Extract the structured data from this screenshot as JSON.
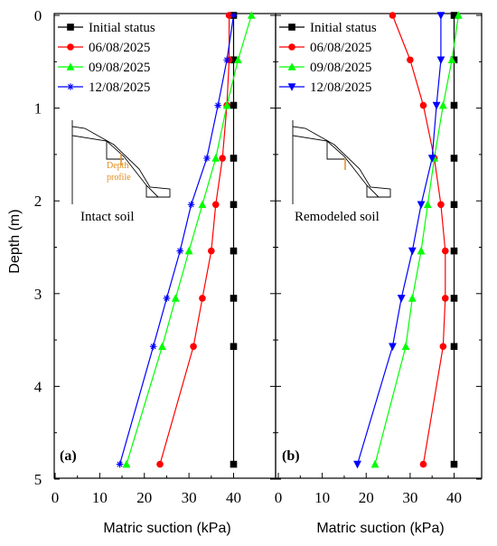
{
  "colors": {
    "Initial status": "#000000",
    "06/08/2025": "#ff0000",
    "09/08/2025": "#00ff00",
    "12/08/2025": "#0000ff",
    "profile": "#e38a1a"
  },
  "y_axis_title": "Depth (m)",
  "chart_data": [
    {
      "type": "line",
      "panel_label": "(a)",
      "inset_label": "Intact soil",
      "inset_note": [
        "Depth",
        "profile"
      ],
      "xlabel": "Matric suction (kPa)",
      "ylabel": "Depth (m)",
      "xlim": [
        0,
        50
      ],
      "ylim": [
        5,
        0
      ],
      "y_inverted": true,
      "x_ticks": [
        "0",
        "10",
        "20",
        "30",
        "40"
      ],
      "y_ticks": [
        "0",
        "1",
        "2",
        "3",
        "4",
        "5"
      ],
      "legend_position": "top-left",
      "series": [
        {
          "name": "Initial status",
          "marker": "square",
          "points": [
            [
              40,
              0
            ],
            [
              40,
              0.48
            ],
            [
              40,
              0.97
            ],
            [
              40,
              1.54
            ],
            [
              40,
              2.04
            ],
            [
              40,
              2.54
            ],
            [
              40,
              3.05
            ],
            [
              40,
              3.57
            ],
            [
              40,
              4.84
            ]
          ]
        },
        {
          "name": "06/08/2025",
          "marker": "circle",
          "points": [
            [
              39,
              0
            ],
            [
              39,
              0.48
            ],
            [
              38.5,
              0.97
            ],
            [
              37.5,
              1.54
            ],
            [
              36,
              2.04
            ],
            [
              35,
              2.54
            ],
            [
              33,
              3.05
            ],
            [
              31,
              3.57
            ],
            [
              23.5,
              4.84
            ]
          ]
        },
        {
          "name": "09/08/2025",
          "marker": "triangle-up",
          "points": [
            [
              44,
              0
            ],
            [
              41,
              0.48
            ],
            [
              38.5,
              0.97
            ],
            [
              36,
              1.54
            ],
            [
              33,
              2.04
            ],
            [
              30,
              2.54
            ],
            [
              27,
              3.05
            ],
            [
              24,
              3.57
            ],
            [
              16,
              4.84
            ]
          ]
        },
        {
          "name": "12/08/2025",
          "marker": "asterisk",
          "points": [
            [
              40,
              0
            ],
            [
              38.5,
              0.48
            ],
            [
              36.5,
              0.97
            ],
            [
              34,
              1.54
            ],
            [
              30.5,
              2.04
            ],
            [
              28,
              2.54
            ],
            [
              25,
              3.05
            ],
            [
              22,
              3.57
            ],
            [
              14.5,
              4.84
            ]
          ]
        }
      ]
    },
    {
      "type": "line",
      "panel_label": "(b)",
      "inset_label": "Remodeled soil",
      "xlabel": "Matric suction (kPa)",
      "ylabel": "Depth (m)",
      "xlim": [
        0,
        45
      ],
      "ylim": [
        5,
        0
      ],
      "y_inverted": true,
      "x_ticks": [
        "0",
        "10",
        "20",
        "30",
        "40"
      ],
      "y_ticks": [
        "0",
        "1",
        "2",
        "3",
        "4",
        "5"
      ],
      "legend_position": "top-left",
      "series": [
        {
          "name": "Initial status",
          "marker": "square",
          "points": [
            [
              40,
              0
            ],
            [
              40,
              0.48
            ],
            [
              40,
              0.97
            ],
            [
              40,
              1.54
            ],
            [
              40,
              2.04
            ],
            [
              40,
              2.54
            ],
            [
              40,
              3.05
            ],
            [
              40,
              3.57
            ],
            [
              40,
              4.84
            ]
          ]
        },
        {
          "name": "06/08/2025",
          "marker": "circle",
          "points": [
            [
              26,
              0
            ],
            [
              30,
              0.48
            ],
            [
              33,
              0.97
            ],
            [
              35.5,
              1.54
            ],
            [
              37,
              2.04
            ],
            [
              38,
              2.54
            ],
            [
              38,
              3.05
            ],
            [
              37.5,
              3.57
            ],
            [
              33,
              4.84
            ]
          ]
        },
        {
          "name": "09/08/2025",
          "marker": "triangle-up",
          "points": [
            [
              41,
              0
            ],
            [
              39.5,
              0.48
            ],
            [
              37.5,
              0.97
            ],
            [
              35.5,
              1.54
            ],
            [
              34,
              2.04
            ],
            [
              32.5,
              2.54
            ],
            [
              30.5,
              3.05
            ],
            [
              29,
              3.57
            ],
            [
              22,
              4.84
            ]
          ]
        },
        {
          "name": "12/08/2025",
          "marker": "triangle-down",
          "points": [
            [
              37,
              0
            ],
            [
              37,
              0.48
            ],
            [
              36,
              0.97
            ],
            [
              35,
              1.54
            ],
            [
              32.5,
              2.04
            ],
            [
              30.5,
              2.54
            ],
            [
              28,
              3.05
            ],
            [
              26,
              3.57
            ],
            [
              18,
              4.84
            ]
          ]
        }
      ]
    }
  ]
}
